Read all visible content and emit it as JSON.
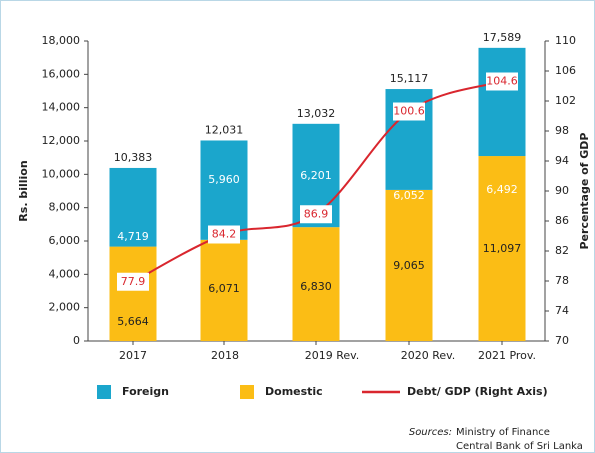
{
  "chart_data": {
    "type": "stacked-bar-line",
    "categories": [
      "2017",
      "2018",
      "2019 Rev.",
      "2020 Rev.",
      "2021 Prov."
    ],
    "series": [
      {
        "name": "Domestic",
        "color": "#fbbd15",
        "values": [
          5664,
          6071,
          6830,
          9065,
          11097
        ],
        "value_labels": [
          "5,664",
          "6,071",
          "6,830",
          "9,065",
          "11,097"
        ]
      },
      {
        "name": "Foreign",
        "color": "#1ba6cc",
        "values": [
          4719,
          5960,
          6201,
          6052,
          6492
        ],
        "value_labels": [
          "4,719",
          "5,960",
          "6,201",
          "6,052",
          "6,492"
        ]
      },
      {
        "name": "Debt/ GDP (Right Axis)",
        "color": "#d9262e",
        "axis": "y2",
        "values": [
          77.9,
          84.2,
          86.9,
          100.6,
          104.6
        ]
      }
    ],
    "totals": [
      10383,
      12031,
      13032,
      15117,
      17589
    ],
    "total_labels": [
      "10,383",
      "12,031",
      "13,032",
      "15,117",
      "17,589"
    ],
    "ylabel": "Rs. billion",
    "y2label": "Percentage of GDP",
    "ylim": [
      0,
      18000
    ],
    "yticks": [
      0,
      {
        "value": 2000,
        "label": "2,000"
      },
      {
        "value": 4000,
        "label": "4,000"
      },
      {
        "value": 6000,
        "label": "6,000"
      },
      {
        "value": 8000,
        "label": "8,000"
      },
      {
        "value": 10000,
        "label": "10,000"
      },
      {
        "value": 12000,
        "label": "12,000"
      },
      {
        "value": 14000,
        "label": "14,000"
      },
      {
        "value": 16000,
        "label": "16,000"
      },
      {
        "value": 18000,
        "label": "18,000"
      }
    ],
    "y2lim": [
      70,
      110
    ],
    "y2ticks": [
      70,
      74,
      78,
      82,
      86,
      90,
      94,
      98,
      102,
      106,
      110
    ],
    "legend": [
      "Foreign",
      "Domestic",
      "Debt/ GDP (Right Axis)"
    ],
    "sources": {
      "label": "Sources:",
      "lines": [
        "Ministry of Finance",
        "Central Bank of Sri Lanka"
      ]
    }
  }
}
